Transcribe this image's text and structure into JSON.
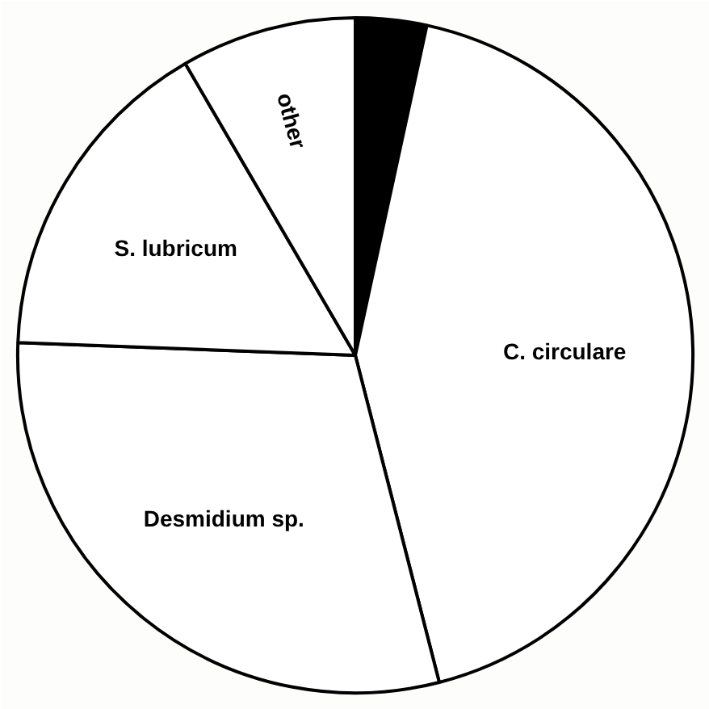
{
  "chart_data": {
    "type": "pie",
    "categories": [
      null,
      "C. circulare",
      "Desmidium sp.",
      "S. lubricum",
      "other"
    ],
    "values": [
      3.4,
      42.6,
      29.6,
      16.0,
      8.4
    ],
    "colors": [
      "#000000",
      "#ffffff",
      "#ffffff",
      "#ffffff",
      "#ffffff"
    ]
  }
}
